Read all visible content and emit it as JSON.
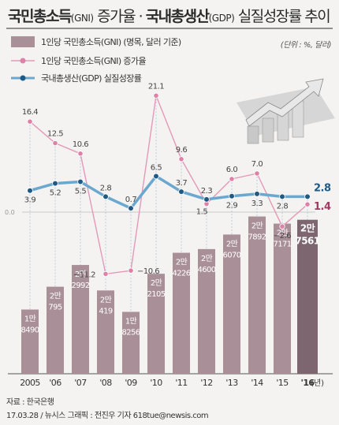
{
  "title": {
    "part1": "국민총소득",
    "part1_abbr": "(GNI)",
    "part2": " 증가율 · ",
    "part3": "국내총생산",
    "part3_abbr": "(GDP)",
    "part4": " 실질성장률 추이"
  },
  "unit": "(단위 : %, 달러)",
  "legend": {
    "bars": "1인당 국민총소득(GNI) (명목, 달러 기준)",
    "gni_rate": "1인당 국민총소득(GNI) 증가율",
    "gdp_rate": "국내총생산(GDP) 실질성장률"
  },
  "zero_label": "0.0",
  "year_unit": "(년)",
  "source": "자료 : 한국은행",
  "credit": "17.03.28 / 뉴시스 그래픽 : 전진우 기자 618tue@newsis.com",
  "colors": {
    "bar": "#a99098",
    "bar_last": "#7d6670",
    "gni_line": "#e399b8",
    "gni_dot": "#e080a8",
    "gdp_line": "#6ba8cf",
    "gdp_dot": "#1f5a86",
    "gni_label_last": "#a23a63",
    "gdp_label_last": "#1f5a86"
  },
  "chart_data": {
    "type": "bar+line",
    "categories": [
      "2005",
      "'06",
      "'07",
      "'08",
      "'09",
      "'10",
      "'11",
      "'12",
      "'13",
      "'14",
      "'15",
      "'16"
    ],
    "per_capita_gni": {
      "name": "1인당 국민총소득(GNI) (명목, 달러 기준)",
      "values": [
        18490,
        20795,
        22992,
        20419,
        18256,
        22105,
        24226,
        24600,
        26070,
        27892,
        27171,
        27561
      ],
      "labels_top": [
        "1만",
        "2만",
        "2만",
        "2만",
        "1만",
        "2만",
        "2만",
        "2만",
        "2만",
        "2만",
        "2만",
        "2만"
      ],
      "labels_bottom": [
        "8490",
        "795",
        "2992",
        "419",
        "8256",
        "2105",
        "4226",
        "4600",
        "6070",
        "7892",
        "7171",
        "7561"
      ]
    },
    "series": [
      {
        "name": "1인당 국민총소득(GNI) 증가율",
        "values": [
          16.4,
          12.5,
          10.6,
          -11.2,
          -10.6,
          21.1,
          9.6,
          1.5,
          6.0,
          7.0,
          -2.6,
          1.4
        ],
        "labels": [
          "16.4",
          "12.5",
          "10.6",
          "−11.2",
          "−10.6",
          "21.1",
          "9.6",
          "1.5",
          "6.0",
          "7.0",
          "−2.6",
          "1.4"
        ]
      },
      {
        "name": "국내총생산(GDP) 실질성장률",
        "values": [
          3.9,
          5.2,
          5.5,
          2.8,
          0.7,
          6.5,
          3.7,
          2.3,
          2.9,
          3.3,
          2.8,
          2.8
        ],
        "labels": [
          "3.9",
          "5.2",
          "5.5",
          "2.8",
          "0.7",
          "6.5",
          "3.7",
          "2.3",
          "2.9",
          "3.3",
          "2.8",
          "2.8"
        ]
      }
    ]
  }
}
